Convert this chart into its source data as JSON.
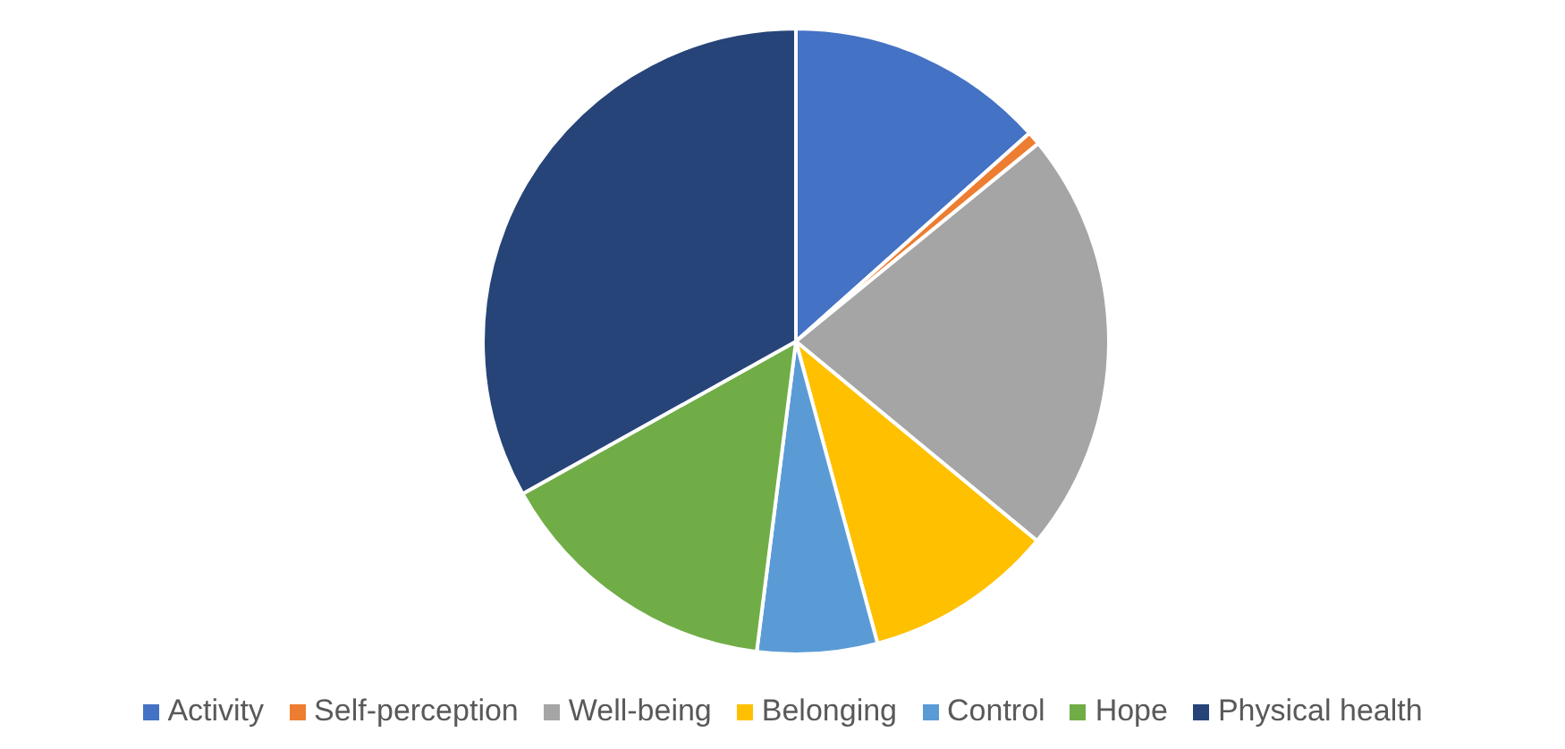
{
  "chart_data": {
    "type": "pie",
    "categories": [
      "Activity",
      "Self-perception",
      "Well-being",
      "Belonging",
      "Control",
      "Hope",
      "Physical health"
    ],
    "values": [
      13.4,
      0.7,
      21.9,
      9.8,
      6.2,
      14.9,
      33.1
    ],
    "colors": [
      "#4472c4",
      "#ed7d31",
      "#a5a5a5",
      "#ffc000",
      "#5b9bd5",
      "#70ad47",
      "#264478"
    ],
    "legend": "bottom"
  }
}
